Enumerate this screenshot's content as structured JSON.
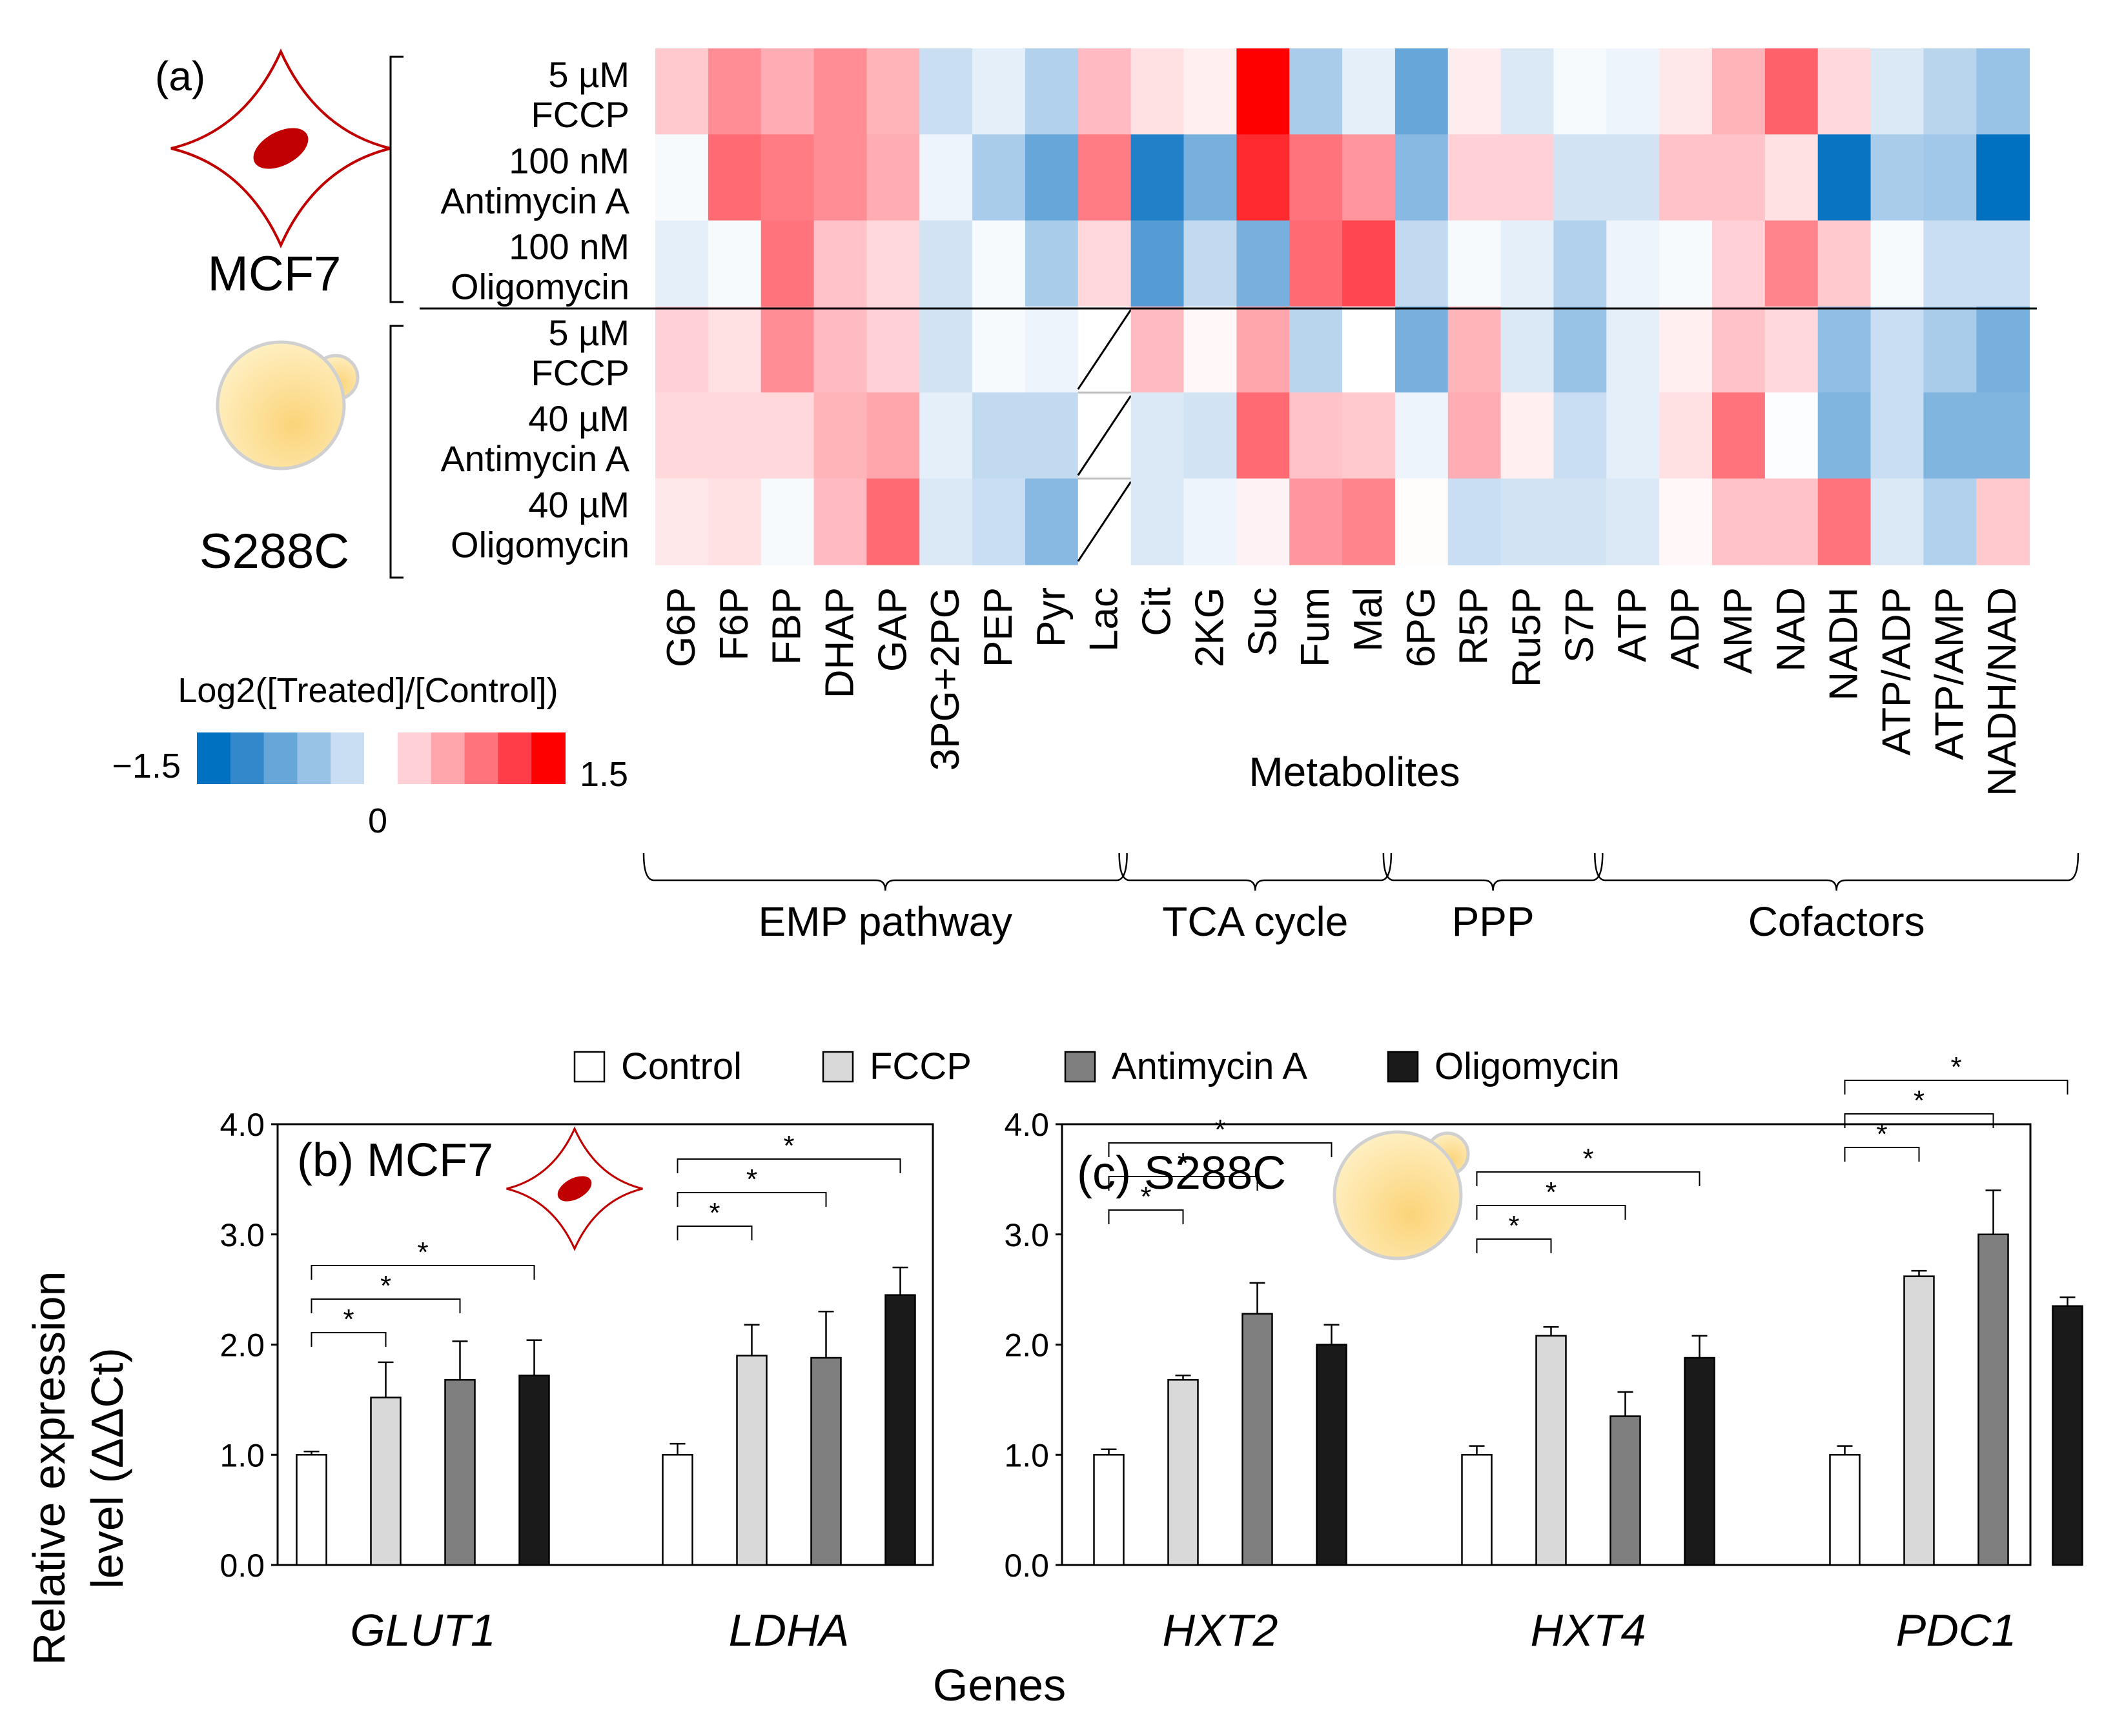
{
  "panel_a": {
    "label": "(a)",
    "organisms": [
      {
        "name": "MCF7",
        "icon": "mcf7-cell-icon"
      },
      {
        "name": "S288C",
        "icon": "yeast-cell-icon"
      }
    ],
    "row_labels": [
      [
        "5 µM",
        "FCCP"
      ],
      [
        "100 nM",
        "Antimycin A"
      ],
      [
        "100 nM",
        "Oligomycin"
      ],
      [
        "5 µM",
        "FCCP"
      ],
      [
        "40 µM",
        "Antimycin A"
      ],
      [
        "40 µM",
        "Oligomycin"
      ]
    ],
    "xlabel": "Metabolites",
    "groups": [
      {
        "name": "EMP pathway",
        "from": 0,
        "to": 8
      },
      {
        "name": "TCA cycle",
        "from": 9,
        "to": 13
      },
      {
        "name": "PPP",
        "from": 14,
        "to": 17
      },
      {
        "name": "Cofactors",
        "from": 18,
        "to": 26
      }
    ],
    "colorbar": {
      "title": "Log2([Treated]/[Control])",
      "min_label": "−1.5",
      "zero_label": "0",
      "max_label": "1.5",
      "colors": [
        "#0070c0",
        "#3388cc",
        "#66a6d9",
        "#99c3e6",
        "#c9def2",
        "#ffffff",
        "#ffd0d5",
        "#ffa6ad",
        "#ff737c",
        "#ff3d48",
        "#ff0000"
      ]
    },
    "missing_note": "missing",
    "missing_mark": "slash"
  },
  "chart_data": [
    {
      "type": "heatmap",
      "title": "(a)",
      "xlabel": "Metabolites",
      "colorbar_label": "Log2([Treated]/[Control])",
      "vmin": -1.5,
      "vmax": 1.5,
      "columns": [
        "G6P",
        "F6P",
        "FBP",
        "DHAP",
        "GAP",
        "3PG+2PG",
        "PEP",
        "Pyr",
        "Lac",
        "Cit",
        "2KG",
        "Suc",
        "Fum",
        "Mal",
        "6PG",
        "R5P",
        "Ru5P",
        "S7P",
        "ATP",
        "ADP",
        "AMP",
        "NAD",
        "NADH",
        "ATP/ADP",
        "ATP/AMP",
        "NADH/NAD"
      ],
      "rows": [
        "MCF7 5 µM FCCP",
        "MCF7 100 nM Antimycin A",
        "MCF7 100 nM Oligomycin",
        "S288C 5 µM FCCP",
        "S288C 40 µM Antimycin A",
        "S288C 40 µM Oligomycin"
      ],
      "values": [
        [
          0.35,
          0.75,
          0.55,
          0.75,
          0.5,
          -0.3,
          -0.15,
          -0.45,
          0.45,
          0.2,
          0.1,
          1.5,
          -0.5,
          -0.15,
          -0.9,
          0.12,
          -0.2,
          -0.05,
          -0.1,
          0.15,
          0.5,
          1.0,
          0.25,
          -0.2,
          -0.4,
          -0.6
        ],
        [
          -0.05,
          0.95,
          0.85,
          0.75,
          0.55,
          -0.1,
          -0.5,
          -0.9,
          0.85,
          -1.3,
          -0.8,
          1.3,
          0.9,
          0.7,
          -0.7,
          0.3,
          0.3,
          -0.25,
          -0.25,
          0.4,
          0.4,
          0.2,
          -1.45,
          -0.5,
          -0.55,
          -1.5
        ],
        [
          -0.15,
          -0.05,
          0.9,
          0.4,
          0.25,
          -0.25,
          -0.05,
          -0.5,
          0.25,
          -1.0,
          -0.35,
          -0.8,
          0.95,
          1.15,
          -0.35,
          -0.05,
          -0.15,
          -0.45,
          -0.1,
          -0.05,
          0.3,
          0.8,
          0.35,
          -0.05,
          -0.3,
          -0.3
        ],
        [
          0.3,
          0.2,
          0.75,
          0.45,
          0.3,
          -0.25,
          -0.05,
          -0.1,
          null,
          0.45,
          0.05,
          0.6,
          -0.4,
          0.0,
          -0.8,
          0.5,
          -0.2,
          -0.6,
          -0.15,
          0.1,
          0.4,
          0.25,
          -0.65,
          -0.3,
          -0.5,
          -0.8
        ],
        [
          0.25,
          0.25,
          0.25,
          0.5,
          0.6,
          -0.15,
          -0.35,
          -0.35,
          null,
          -0.2,
          -0.25,
          0.95,
          0.4,
          0.35,
          -0.1,
          0.55,
          0.1,
          -0.3,
          -0.15,
          0.2,
          0.9,
          -0.02,
          -0.75,
          -0.3,
          -0.75,
          -0.75
        ],
        [
          0.15,
          0.2,
          -0.05,
          0.45,
          0.95,
          -0.2,
          -0.3,
          -0.7,
          null,
          -0.2,
          -0.1,
          0.08,
          0.7,
          0.8,
          0.02,
          -0.3,
          -0.25,
          -0.25,
          -0.2,
          0.05,
          0.4,
          0.4,
          0.9,
          -0.2,
          -0.45,
          0.35
        ]
      ]
    },
    {
      "type": "bar",
      "title": "(b) MCF7",
      "icon": "mcf7-cell-icon",
      "xlabel": "Genes",
      "ylabel": "Relative expression level (ΔΔCt)",
      "ylim": [
        0,
        4.0
      ],
      "yticks": [
        "0.0",
        "1.0",
        "2.0",
        "3.0",
        "4.0"
      ],
      "categories": [
        "GLUT1",
        "LDHA"
      ],
      "series": [
        {
          "name": "Control",
          "values": [
            1.0,
            1.0
          ],
          "errors": [
            0.03,
            0.1
          ]
        },
        {
          "name": "FCCP",
          "values": [
            1.52,
            1.9
          ],
          "errors": [
            0.32,
            0.28
          ]
        },
        {
          "name": "Antimycin A",
          "values": [
            1.68,
            1.88
          ],
          "errors": [
            0.35,
            0.42
          ]
        },
        {
          "name": "Oligomycin",
          "values": [
            1.72,
            2.45
          ],
          "errors": [
            0.32,
            0.25
          ]
        }
      ],
      "significance": [
        {
          "category": 0,
          "to": "FCCP",
          "label": "*"
        },
        {
          "category": 0,
          "to": "Antimycin A",
          "label": "*"
        },
        {
          "category": 0,
          "to": "Oligomycin",
          "label": "*"
        },
        {
          "category": 1,
          "to": "FCCP",
          "label": "*"
        },
        {
          "category": 1,
          "to": "Antimycin A",
          "label": "*"
        },
        {
          "category": 1,
          "to": "Oligomycin",
          "label": "*"
        }
      ]
    },
    {
      "type": "bar",
      "title": "(c) S288C",
      "icon": "yeast-cell-icon",
      "xlabel": "Genes",
      "ylim": [
        0,
        4.0
      ],
      "yticks": [
        "0.0",
        "1.0",
        "2.0",
        "3.0",
        "4.0"
      ],
      "categories": [
        "HXT2",
        "HXT4",
        "PDC1"
      ],
      "series": [
        {
          "name": "Control",
          "values": [
            1.0,
            1.0,
            1.0
          ],
          "errors": [
            0.05,
            0.08,
            0.08
          ]
        },
        {
          "name": "FCCP",
          "values": [
            1.68,
            2.08,
            2.62
          ],
          "errors": [
            0.04,
            0.08,
            0.05
          ]
        },
        {
          "name": "Antimycin A",
          "values": [
            2.28,
            1.35,
            3.0
          ],
          "errors": [
            0.28,
            0.22,
            0.4
          ]
        },
        {
          "name": "Oligomycin",
          "values": [
            2.0,
            1.88,
            2.35
          ],
          "errors": [
            0.18,
            0.2,
            0.08
          ]
        }
      ],
      "significance": [
        {
          "category": 0,
          "to": "FCCP",
          "label": "*"
        },
        {
          "category": 0,
          "to": "Antimycin A",
          "label": "*"
        },
        {
          "category": 0,
          "to": "Oligomycin",
          "label": "*"
        },
        {
          "category": 1,
          "to": "FCCP",
          "label": "*"
        },
        {
          "category": 1,
          "to": "Antimycin A",
          "label": "*"
        },
        {
          "category": 1,
          "to": "Oligomycin",
          "label": "*"
        },
        {
          "category": 2,
          "to": "FCCP",
          "label": "*"
        },
        {
          "category": 2,
          "to": "Antimycin A",
          "label": "*"
        },
        {
          "category": 2,
          "to": "Oligomycin",
          "label": "*"
        }
      ]
    }
  ],
  "bar_legend": [
    {
      "name": "Control",
      "color": "#ffffff"
    },
    {
      "name": "FCCP",
      "color": "#d9d9d9"
    },
    {
      "name": "Antimycin A",
      "color": "#7f7f7f"
    },
    {
      "name": "Oligomycin",
      "color": "#1a1a1a"
    }
  ],
  "bar_axis": {
    "ylabel_line1": "Relative expression",
    "ylabel_line2": "level (ΔΔCt)",
    "xlabel": "Genes"
  },
  "colors": {
    "mcf7_red": "#c00000",
    "yeast_light": "#fff0c4",
    "yeast_dark": "#fbd47a",
    "yeast_outline": "#d0d0d0"
  }
}
